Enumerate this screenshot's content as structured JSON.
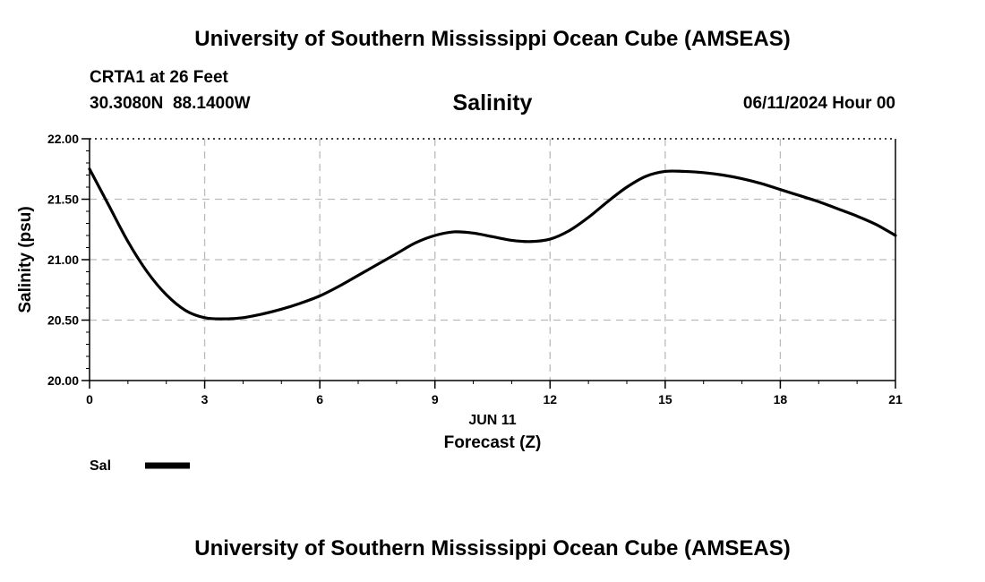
{
  "header": {
    "title": "University of Southern Mississippi Ocean Cube (AMSEAS)",
    "station_name": "CRTA1 at 26 Feet",
    "station_coords": "30.3080N  88.1400W",
    "run_time": "06/11/2024 Hour 00"
  },
  "footer": {
    "title": "University of Southern Mississippi Ocean Cube (AMSEAS)"
  },
  "colors": {
    "line": "#000000",
    "grid": "#bbbbbb",
    "background": "#ffffff"
  },
  "chart_data": {
    "type": "line",
    "title": "Salinity",
    "xlabel": "Forecast (Z)",
    "date_label": "JUN 11",
    "ylabel": "Salinity (psu)",
    "xlim": [
      0,
      21
    ],
    "ylim": [
      20.0,
      22.0
    ],
    "x_ticks": [
      0,
      3,
      6,
      9,
      12,
      15,
      18,
      21
    ],
    "y_ticks": [
      "20.00",
      "20.50",
      "21.00",
      "21.50",
      "22.00"
    ],
    "grid": true,
    "legend_position": "bottom-left",
    "series": [
      {
        "name": "Sal",
        "x": [
          0,
          0.5,
          1,
          1.5,
          2,
          2.5,
          3,
          3.5,
          4,
          4.5,
          5,
          5.5,
          6,
          6.5,
          7,
          7.5,
          8,
          8.5,
          9,
          9.5,
          10,
          10.5,
          11,
          11.5,
          12,
          12.5,
          13,
          13.5,
          14,
          14.5,
          15,
          15.5,
          16,
          16.5,
          17,
          17.5,
          18,
          18.5,
          19,
          19.5,
          20,
          20.5,
          21
        ],
        "values": [
          21.75,
          21.45,
          21.15,
          20.9,
          20.71,
          20.58,
          20.52,
          20.51,
          20.52,
          20.55,
          20.59,
          20.64,
          20.7,
          20.78,
          20.87,
          20.96,
          21.05,
          21.14,
          21.2,
          21.23,
          21.22,
          21.19,
          21.16,
          21.15,
          21.17,
          21.24,
          21.35,
          21.48,
          21.6,
          21.69,
          21.73,
          21.73,
          21.72,
          21.7,
          21.67,
          21.63,
          21.58,
          21.53,
          21.48,
          21.42,
          21.36,
          21.29,
          21.2
        ]
      }
    ]
  }
}
